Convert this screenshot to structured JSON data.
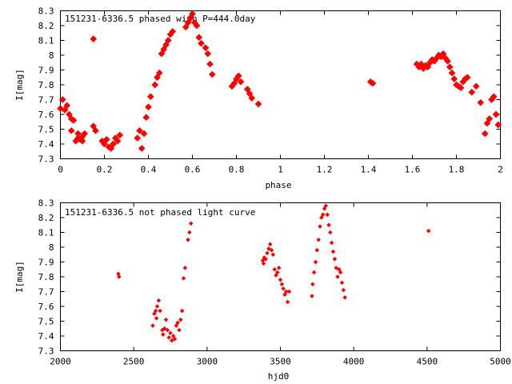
{
  "chart_data": [
    {
      "type": "scatter",
      "title": "151231-6336.5 phased with P=444.0day",
      "xlabel": "phase",
      "ylabel": "I[mag]",
      "xlim": [
        0,
        2
      ],
      "ylim": [
        8.3,
        7.3
      ],
      "y_reversed": true,
      "x_ticks": [
        "0",
        "0.2",
        "0.4",
        "0.6",
        "0.8",
        "1",
        "1.2",
        "1.4",
        "1.6",
        "1.8",
        "2"
      ],
      "y_ticks": [
        "7.3",
        "7.4",
        "7.5",
        "7.6",
        "7.7",
        "7.8",
        "7.9",
        "8",
        "8.1",
        "8.2",
        "8.3"
      ],
      "grid": false,
      "marker_color": "#ff0000",
      "series": [
        {
          "x": [
            0.0,
            0.01,
            0.02,
            0.03,
            0.04,
            0.05,
            0.05,
            0.06,
            0.07,
            0.08,
            0.08,
            0.09,
            0.1,
            0.1,
            0.11,
            0.15,
            0.15,
            0.16,
            0.19,
            0.2,
            0.21,
            0.22,
            0.23,
            0.24,
            0.25,
            0.26,
            0.27,
            0.35,
            0.36,
            0.37,
            0.38,
            0.39,
            0.4,
            0.41,
            0.43,
            0.44,
            0.45,
            0.46,
            0.47,
            0.48,
            0.49,
            0.5,
            0.51,
            0.57,
            0.58,
            0.59,
            0.6,
            0.61,
            0.62,
            0.63,
            0.64,
            0.66,
            0.67,
            0.68,
            0.69,
            0.78,
            0.79,
            0.8,
            0.81,
            0.82,
            0.85,
            0.86,
            0.87,
            0.9,
            1.41,
            1.42,
            1.62,
            1.63,
            1.64,
            1.65,
            1.66,
            1.67,
            1.68,
            1.69,
            1.7,
            1.71,
            1.72,
            1.73,
            1.74,
            1.75,
            1.76,
            1.77,
            1.78,
            1.79,
            1.8,
            1.81,
            1.82,
            1.83,
            1.84,
            1.85,
            1.87,
            1.89,
            1.91,
            1.93,
            1.94,
            1.95,
            1.96,
            1.97,
            1.98,
            1.99
          ],
          "y": [
            7.64,
            7.7,
            7.63,
            7.66,
            7.6,
            7.57,
            7.49,
            7.56,
            7.42,
            7.44,
            7.47,
            7.43,
            7.45,
            7.42,
            7.47,
            8.11,
            7.52,
            7.49,
            7.42,
            7.4,
            7.43,
            7.38,
            7.37,
            7.4,
            7.44,
            7.42,
            7.46,
            7.44,
            7.49,
            7.37,
            7.47,
            7.58,
            7.65,
            7.72,
            7.8,
            7.85,
            7.88,
            8.01,
            8.04,
            8.07,
            8.1,
            8.14,
            8.16,
            8.19,
            8.22,
            8.25,
            8.28,
            8.22,
            8.2,
            8.12,
            8.08,
            8.05,
            8.01,
            7.94,
            7.87,
            7.79,
            7.81,
            7.84,
            7.86,
            7.82,
            7.77,
            7.74,
            7.71,
            7.67,
            7.82,
            7.81,
            7.94,
            7.92,
            7.94,
            7.91,
            7.93,
            7.92,
            7.95,
            7.97,
            7.96,
            7.98,
            8.0,
            7.99,
            8.01,
            7.98,
            7.96,
            7.92,
            7.88,
            7.84,
            7.8,
            7.79,
            7.78,
            7.82,
            7.84,
            7.85,
            7.75,
            7.79,
            7.68,
            7.47,
            7.54,
            7.57,
            7.7,
            7.72,
            7.6,
            7.53
          ]
        }
      ]
    },
    {
      "type": "scatter",
      "title": "151231-6336.5 not phased light curve",
      "xlabel": "hjd0",
      "ylabel": "I[mag]",
      "xlim": [
        2000,
        5000
      ],
      "ylim": [
        8.3,
        7.3
      ],
      "y_reversed": true,
      "x_ticks": [
        "2000",
        "2500",
        "3000",
        "3500",
        "4000",
        "4500",
        "5000"
      ],
      "y_ticks": [
        "7.3",
        "7.4",
        "7.5",
        "7.6",
        "7.7",
        "7.8",
        "7.9",
        "8",
        "8.1",
        "8.2",
        "8.3"
      ],
      "grid": false,
      "marker_color": "#ff0000",
      "series": [
        {
          "x": [
            2395,
            2400,
            2630,
            2640,
            2650,
            2655,
            2660,
            2670,
            2680,
            2695,
            2700,
            2710,
            2720,
            2730,
            2740,
            2750,
            2760,
            2770,
            2780,
            2790,
            2800,
            2810,
            2820,
            2830,
            2840,
            2850,
            2870,
            2880,
            2890,
            3380,
            3385,
            3390,
            3400,
            3410,
            3420,
            3430,
            3440,
            3450,
            3460,
            3470,
            3480,
            3490,
            3500,
            3510,
            3520,
            3530,
            3540,
            3550,
            3560,
            3715,
            3720,
            3730,
            3740,
            3750,
            3760,
            3770,
            3780,
            3790,
            3800,
            3810,
            3820,
            3830,
            3840,
            3850,
            3860,
            3870,
            3880,
            3890,
            3900,
            3910,
            3920,
            3930,
            3940,
            4510
          ],
          "y": [
            7.82,
            7.8,
            7.47,
            7.55,
            7.57,
            7.52,
            7.6,
            7.64,
            7.57,
            7.44,
            7.41,
            7.45,
            7.51,
            7.44,
            7.39,
            7.42,
            7.37,
            7.4,
            7.38,
            7.47,
            7.49,
            7.44,
            7.51,
            7.57,
            7.79,
            7.86,
            8.05,
            8.1,
            8.16,
            7.91,
            7.89,
            7.93,
            7.92,
            7.96,
            7.99,
            8.02,
            7.98,
            7.95,
            7.85,
            7.81,
            7.83,
            7.86,
            7.78,
            7.75,
            7.72,
            7.68,
            7.7,
            7.63,
            7.7,
            7.67,
            7.75,
            7.83,
            7.9,
            7.98,
            8.05,
            8.14,
            8.2,
            8.22,
            8.26,
            8.28,
            8.22,
            8.15,
            8.1,
            8.03,
            7.97,
            7.92,
            7.86,
            7.8,
            7.85,
            7.83,
            7.76,
            7.71,
            7.66,
            8.11
          ]
        }
      ]
    }
  ]
}
